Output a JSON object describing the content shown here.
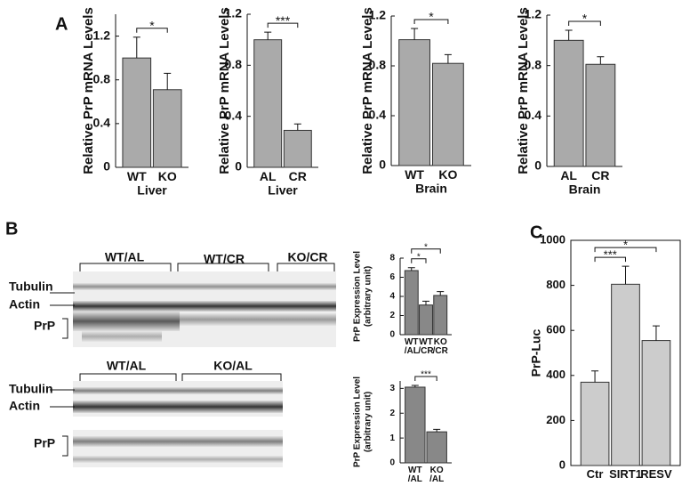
{
  "panels": [
    "A",
    "B",
    "C"
  ],
  "blots": [
    {
      "groups": [
        "WT/AL",
        "WT/CR",
        "KO/CR"
      ],
      "bands": [
        "Tubulin",
        "Actin",
        "PrP"
      ]
    },
    {
      "groups": [
        "WT/AL",
        "KO/AL"
      ],
      "bands": [
        "Tubulin",
        "Actin",
        "PrP"
      ]
    }
  ],
  "chart_data": [
    {
      "type": "bar",
      "y_label": "Relative PrP mRNA Levels",
      "x_label": "Liver",
      "categories": [
        "WT",
        "KO"
      ],
      "values": [
        1.0,
        0.71
      ],
      "errors": [
        0.19,
        0.15
      ],
      "color": "#aaaaaa",
      "ylim": [
        0,
        1.4
      ],
      "yticks": [
        0,
        0.4,
        0.8,
        1.2
      ],
      "comparisons": [
        {
          "groups": [
            "WT",
            "KO"
          ],
          "label": "*"
        }
      ]
    },
    {
      "type": "bar",
      "y_label": "Relative PrP mRNA Levels",
      "x_label": "Liver",
      "categories": [
        "AL",
        "CR"
      ],
      "values": [
        1.0,
        0.29
      ],
      "errors": [
        0.06,
        0.05
      ],
      "color": "#aaaaaa",
      "ylim": [
        0,
        1.2
      ],
      "yticks": [
        0,
        0.4,
        0.8,
        1.2
      ],
      "comparisons": [
        {
          "groups": [
            "AL",
            "CR"
          ],
          "label": "***"
        }
      ]
    },
    {
      "type": "bar",
      "y_label": "Relative PrP mRNA Levels",
      "x_label": "Brain",
      "categories": [
        "WT",
        "KO"
      ],
      "values": [
        1.01,
        0.82
      ],
      "errors": [
        0.09,
        0.07
      ],
      "color": "#aaaaaa",
      "ylim": [
        0,
        1.2
      ],
      "yticks": [
        0,
        0.4,
        0.8,
        1.2
      ],
      "comparisons": [
        {
          "groups": [
            "WT",
            "KO"
          ],
          "label": "*"
        }
      ]
    },
    {
      "type": "bar",
      "y_label": "Relative PrP mRNA Levels",
      "x_label": "Brain",
      "categories": [
        "AL",
        "CR"
      ],
      "values": [
        1.0,
        0.81
      ],
      "errors": [
        0.08,
        0.06
      ],
      "color": "#aaaaaa",
      "ylim": [
        0,
        1.2
      ],
      "yticks": [
        0,
        0.4,
        0.8,
        1.2
      ],
      "comparisons": [
        {
          "groups": [
            "AL",
            "CR"
          ],
          "label": "*"
        }
      ]
    },
    {
      "type": "bar",
      "y_label": "PrP Expression Level",
      "y_label_sub": "(arbitrary unit)",
      "categories": [
        "WT/AL",
        "WT/CR",
        "KO/CR"
      ],
      "values": [
        6.7,
        3.1,
        4.1
      ],
      "errors": [
        0.3,
        0.4,
        0.4
      ],
      "color": "#888888",
      "ylim": [
        0,
        8
      ],
      "yticks": [
        0,
        2,
        4,
        6,
        8
      ],
      "comparisons": [
        {
          "groups": [
            "WT/AL",
            "WT/CR"
          ],
          "label": "*"
        },
        {
          "groups": [
            "WT/AL",
            "KO/CR"
          ],
          "label": "*"
        }
      ]
    },
    {
      "type": "bar",
      "y_label": "PrP Expression Level",
      "y_label_sub": "(arbitrary unit)",
      "categories": [
        "WT/AL",
        "KO/AL"
      ],
      "values": [
        3.05,
        1.25
      ],
      "errors": [
        0.07,
        0.1
      ],
      "color": "#888888",
      "ylim": [
        0,
        3.3
      ],
      "yticks": [
        0,
        1,
        2,
        3
      ],
      "comparisons": [
        {
          "groups": [
            "WT/AL",
            "KO/AL"
          ],
          "label": "***"
        }
      ]
    },
    {
      "type": "bar",
      "y_label": "PrP-Luc",
      "categories": [
        "Ctr",
        "SIRT1",
        "RESV"
      ],
      "values": [
        370,
        805,
        555
      ],
      "errors": [
        50,
        80,
        65
      ],
      "color": "#cccccc",
      "ylim": [
        0,
        1000
      ],
      "yticks": [
        0,
        200,
        400,
        600,
        800,
        1000
      ],
      "comparisons": [
        {
          "groups": [
            "Ctr",
            "SIRT1"
          ],
          "label": "***"
        },
        {
          "groups": [
            "Ctr",
            "RESV"
          ],
          "label": "*"
        }
      ],
      "frame": true
    }
  ]
}
